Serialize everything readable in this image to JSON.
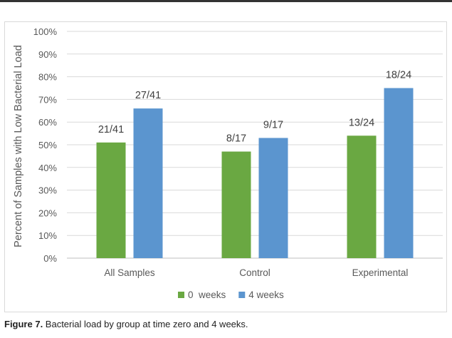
{
  "chart_data": {
    "type": "bar",
    "categories": [
      "All Samples",
      "Control",
      "Experimental"
    ],
    "series": [
      {
        "name": "0  weeks",
        "color": "#6aa842",
        "values": [
          51,
          47,
          54
        ],
        "labels": [
          "21/41",
          "8/17",
          "13/24"
        ]
      },
      {
        "name": "4 weeks",
        "color": "#5b95cf",
        "values": [
          66,
          53,
          75
        ],
        "labels": [
          "27/41",
          "9/17",
          "18/24"
        ]
      }
    ],
    "ylabel": "Percent of Samples with Low Bacterial Load",
    "ylim": [
      0,
      100
    ],
    "yticks": [
      "0%",
      "10%",
      "20%",
      "30%",
      "40%",
      "50%",
      "60%",
      "70%",
      "80%",
      "90%",
      "100%"
    ],
    "grid": true,
    "legend_position": "bottom"
  },
  "caption": {
    "label": "Figure 7.",
    "text": " Bacterial load by group at time zero and 4 weeks."
  }
}
